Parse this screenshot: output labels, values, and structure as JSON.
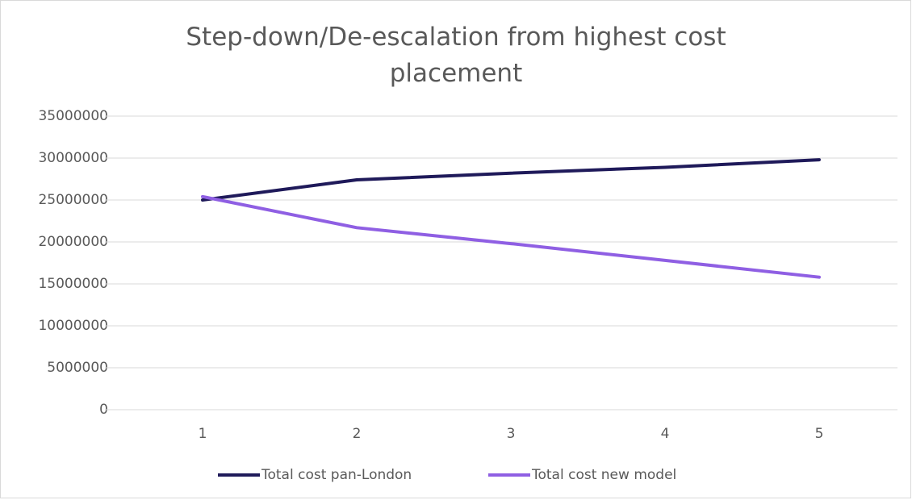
{
  "chart_data": {
    "type": "line",
    "title": "Step-down/De-escalation from highest cost placement",
    "categories": [
      "1",
      "2",
      "3",
      "4",
      "5"
    ],
    "series": [
      {
        "name": "Total cost pan-London",
        "color": "#1f1a5a",
        "values": [
          25000000,
          27400000,
          28200000,
          28900000,
          29800000
        ]
      },
      {
        "name": "Total cost new model",
        "color": "#8f5fe3",
        "values": [
          25400000,
          21700000,
          19800000,
          17800000,
          15800000
        ]
      }
    ],
    "ylim": [
      0,
      35000000
    ],
    "yticks": [
      0,
      5000000,
      10000000,
      15000000,
      20000000,
      25000000,
      30000000,
      35000000
    ],
    "grid": true,
    "legend": "bottom"
  }
}
